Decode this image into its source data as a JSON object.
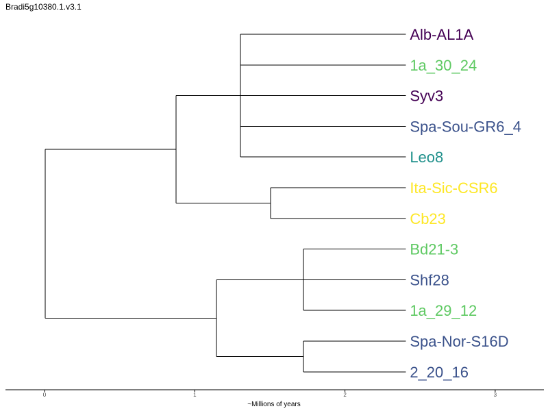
{
  "title": "Bradi5g10380.1.v3.1",
  "tree": {
    "leaves": [
      {
        "name": "Alb-AL1A",
        "color": "#440154"
      },
      {
        "name": "1a_30_24",
        "color": "#5ec962"
      },
      {
        "name": "Syv3",
        "color": "#440154"
      },
      {
        "name": "Spa-Sou-GR6_4",
        "color": "#3b528b"
      },
      {
        "name": "Leo8",
        "color": "#21918c"
      },
      {
        "name": "Ita-Sic-CSR6",
        "color": "#fde725"
      },
      {
        "name": "Cb23",
        "color": "#fde725"
      },
      {
        "name": "Bd21-3",
        "color": "#5ec962"
      },
      {
        "name": "Shf28",
        "color": "#3b528b"
      },
      {
        "name": "1a_29_12",
        "color": "#5ec962"
      },
      {
        "name": "Spa-Nor-S16D",
        "color": "#3b528b"
      },
      {
        "name": "2_20_16",
        "color": "#3b528b"
      }
    ],
    "node_ages": {
      "root": 0,
      "cladeA": 0.87,
      "cladeA1": 1.3,
      "cladeA2": 1.5,
      "cladeB": 1.14,
      "cladeB1": 1.72,
      "cladeB2": 1.72,
      "tips": 2.4
    }
  },
  "axis": {
    "label": "~Millions of years",
    "ticks": [
      "0",
      "1",
      "2",
      "3"
    ],
    "range": [
      -0.25,
      3.33
    ]
  }
}
